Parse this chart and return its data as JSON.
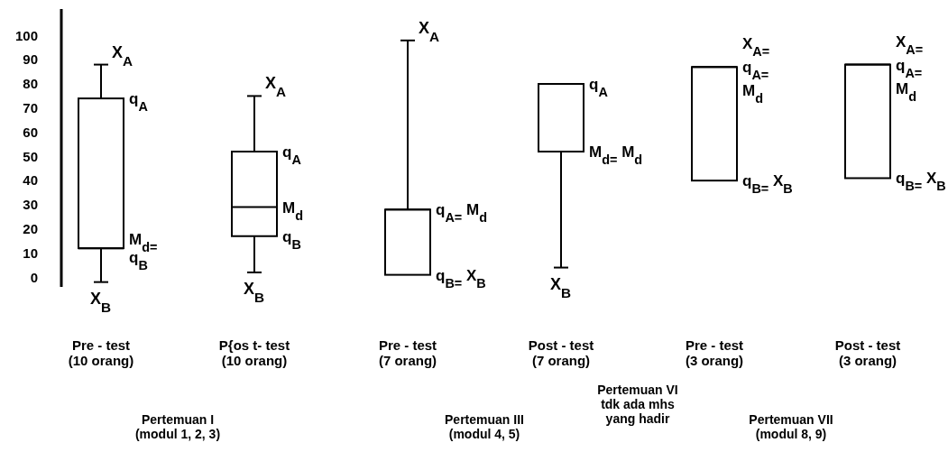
{
  "chart_data": {
    "type": "box",
    "categories": [
      "Pre - test\n(10 orang)",
      "P{os t- test\n(10 orang)",
      "Pre - test\n(7 orang)",
      "Post - test\n(7 orang)",
      "Pre - test\n(3 orang)",
      "Post - test\n(3 orang)"
    ],
    "boxes": [
      {
        "low": -2,
        "q1": 12,
        "median": 12,
        "q3": 74,
        "high": 88
      },
      {
        "low": 2,
        "q1": 17,
        "median": 29,
        "q3": 52,
        "high": 75
      },
      {
        "low": 1,
        "q1": 1,
        "median": 28,
        "q3": 28,
        "high": 98
      },
      {
        "low": 4,
        "q1": 52,
        "median": 52,
        "q3": 80,
        "high": 80
      },
      {
        "low": 40,
        "q1": 40,
        "median": 87,
        "q3": 87,
        "high": 87
      },
      {
        "low": 41,
        "q1": 41,
        "median": 88,
        "q3": 88,
        "high": 88
      }
    ],
    "ylim": [
      -4,
      111
    ],
    "yticks": [
      0,
      10,
      20,
      30,
      40,
      50,
      60,
      70,
      80,
      90,
      100
    ],
    "grid": false,
    "annotations": [
      {
        "text": "X$_{A}$",
        "x": "Pre - test\n(10 orang)",
        "y": 88
      },
      {
        "text": "q$_{A}$",
        "x": "Pre - test\n(10 orang)",
        "y": 74
      },
      {
        "text": "M$_{d=}$\nq$_{B}$",
        "x": "Pre - test\n(10 orang)",
        "y": 12
      },
      {
        "text": "X$_{B}$",
        "x": "Pre - test\n(10 orang)",
        "y": -2
      },
      {
        "text": "X$_{A}$",
        "x": "P{os t- test\n(10 orang)",
        "y": 75
      },
      {
        "text": "q$_{A}$",
        "x": "P{os t- test\n(10 orang)",
        "y": 52
      },
      {
        "text": "M$_{d}$",
        "x": "P{os t- test\n(10 orang)",
        "y": 29
      },
      {
        "text": "q$_{B}$",
        "x": "P{os t- test\n(10 orang)",
        "y": 17
      },
      {
        "text": "X$_{B}$",
        "x": "P{os t- test\n(10 orang)",
        "y": 2
      },
      {
        "text": "X$_{A}$",
        "x": "Pre - test\n(7 orang)",
        "y": 98
      },
      {
        "text": "q$_{A=}$ M$_{d}$",
        "x": "Pre - test\n(7 orang)",
        "y": 28
      },
      {
        "text": "q$_{B=}$ X$_{B}$",
        "x": "Pre - test\n(7 orang)",
        "y": 1
      },
      {
        "text": "q$_{A}$",
        "x": "Post - test\n(7 orang)",
        "y": 80
      },
      {
        "text": "M$_{d=}$ M$_{d}$",
        "x": "Post - test\n(7 orang)",
        "y": 52
      },
      {
        "text": "X$_{B}$",
        "x": "Post - test\n(7 orang)",
        "y": 4
      },
      {
        "text": "X$_{A=}$\nq$_{A=}$\nM$_{d}$",
        "x": "Pre - test\n(3 orang)",
        "y": 87
      },
      {
        "text": "q$_{B=}$ X$_{B}$",
        "x": "Pre - test\n(3 orang)",
        "y": 40
      },
      {
        "text": "X$_{A=}$\nq$_{A=}$\nM$_{d}$",
        "x": "Post - test\n(3 orang)",
        "y": 88
      },
      {
        "text": "q$_{B=}$ X$_{B}$",
        "x": "Post - test\n(3 orang)",
        "y": 41
      },
      "Pertemuan I\n(modul 1, 2, 3)",
      "Pertemuan III\n(modul 4, 5)",
      "Pertemuan VI\ntdk ada mhs\nyang hadir",
      "Pertemuan VII\n(modul 8, 9)"
    ]
  }
}
